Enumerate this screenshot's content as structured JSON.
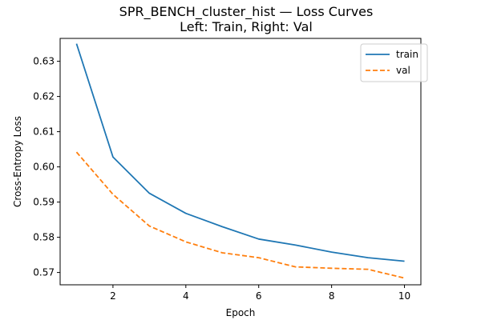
{
  "chart_data": {
    "type": "line",
    "title": "SPR_BENCH_cluster_hist — Loss Curves",
    "subtitle": "Left: Train, Right: Val",
    "xlabel": "Epoch",
    "ylabel": "Cross-Entropy Loss",
    "x": [
      1,
      2,
      3,
      4,
      5,
      6,
      7,
      8,
      9,
      10
    ],
    "xlim": [
      0.55,
      10.45
    ],
    "ylim": [
      0.5665,
      0.6365
    ],
    "xticks": [
      2,
      4,
      6,
      8,
      10
    ],
    "yticks": [
      0.57,
      0.58,
      0.59,
      0.6,
      0.61,
      0.62,
      0.63
    ],
    "ytick_labels": [
      "0.57",
      "0.58",
      "0.59",
      "0.60",
      "0.61",
      "0.62",
      "0.63"
    ],
    "grid": false,
    "legend_position": "top-right",
    "series": [
      {
        "name": "train",
        "color": "#1f77b4",
        "style": "solid",
        "values": [
          0.635,
          0.6028,
          0.5925,
          0.5868,
          0.583,
          0.5795,
          0.5778,
          0.5758,
          0.5742,
          0.5732
        ]
      },
      {
        "name": "val",
        "color": "#ff7f0e",
        "style": "dashed",
        "values": [
          0.6042,
          0.5922,
          0.5832,
          0.5787,
          0.5756,
          0.5742,
          0.5716,
          0.5712,
          0.5709,
          0.5684
        ]
      }
    ]
  }
}
